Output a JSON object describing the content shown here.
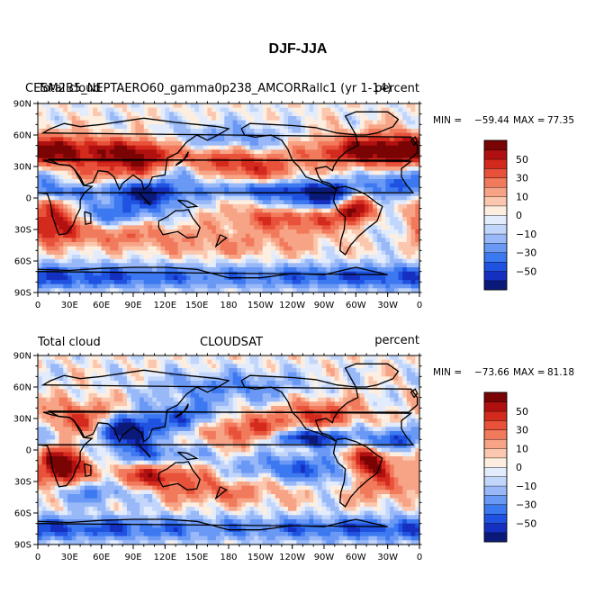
{
  "figure": {
    "title": "DJF-JJA"
  },
  "colormap": [
    "#0b1a7a",
    "#1530c0",
    "#1f52e0",
    "#3c78f0",
    "#6a98f5",
    "#98b8f8",
    "#c2d6fb",
    "#e2ecfd",
    "#fdeee0",
    "#fbc7ae",
    "#f7a386",
    "#f27a5c",
    "#e8523a",
    "#d42a1e",
    "#b01010",
    "#7a0404"
  ],
  "colorbar": {
    "levels": [
      -60,
      -50,
      -40,
      -30,
      -20,
      -10,
      -5,
      0,
      5,
      10,
      20,
      30,
      40,
      50,
      60
    ],
    "tick_labels": [
      "50",
      "30",
      "10",
      "0",
      "−10",
      "−30",
      "−50"
    ]
  },
  "axes": {
    "lat_ticks": [
      "90N",
      "60N",
      "30N",
      "0",
      "30S",
      "60S",
      "90S"
    ],
    "lon_ticks": [
      "0",
      "30E",
      "60E",
      "90E",
      "120E",
      "150E",
      "180",
      "150W",
      "120W",
      "90W",
      "60W",
      "30W",
      "0"
    ]
  },
  "panels": [
    {
      "left_label": "Total cloud",
      "center_label": "CESM2B5_NEPTAERO60_gamma0p238_AMCORRallc1 (yr 1-14)",
      "right_label": "percent",
      "min_label": "MIN =",
      "min_value": "−59.44",
      "max_label": "MAX =",
      "max_value": "77.35"
    },
    {
      "left_label": "Total cloud",
      "center_label": "CLOUDSAT",
      "right_label": "percent",
      "min_label": "MIN =",
      "min_value": "−73.66",
      "max_label": "MAX =",
      "max_value": "81.18"
    }
  ]
}
